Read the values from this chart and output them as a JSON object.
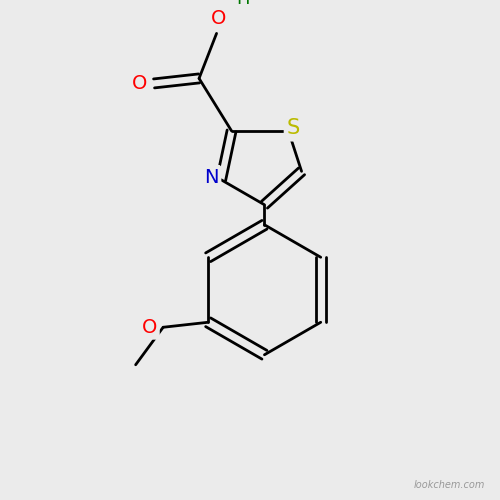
{
  "background_color": "#ebebeb",
  "atom_colors": {
    "C": "#000000",
    "N": "#0000cc",
    "O": "#ff0000",
    "S": "#bbbb00",
    "H": "#007700"
  },
  "bond_color": "#000000",
  "bond_width": 2.0,
  "font_size_atoms": 14,
  "watermark": "lookchem.com",
  "xlim": [
    0,
    10
  ],
  "ylim": [
    0,
    10
  ]
}
